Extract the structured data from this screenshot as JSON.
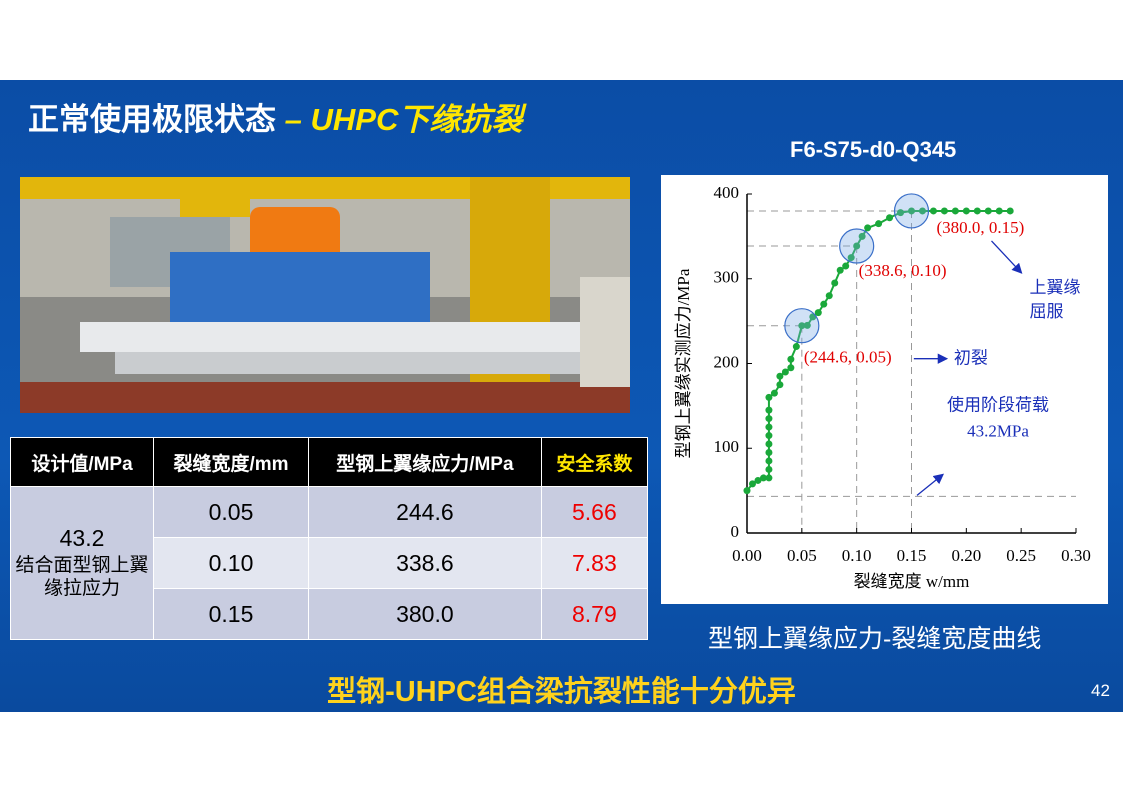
{
  "title": {
    "main": "正常使用极限状态",
    "dash": "–",
    "highlight": "UHPC下缘抗裂"
  },
  "table": {
    "header": [
      "设计值/MPa",
      "裂缝宽度/mm",
      "型钢上翼缘应力/MPa",
      "安全系数"
    ],
    "design_value": "43.2",
    "design_desc": "结合面型钢上翼缘拉应力",
    "rows": [
      [
        "0.05",
        "244.6",
        "5.66"
      ],
      [
        "0.10",
        "338.6",
        "7.83"
      ],
      [
        "0.15",
        "380.0",
        "8.79"
      ]
    ]
  },
  "chart_data": {
    "type": "line",
    "title": "F6-S75-d0-Q345",
    "caption": "型钢上翼缘应力-裂缝宽度曲线",
    "x_label": "裂缝宽度 w/mm",
    "y_label": "型钢上翼缘实测应力/MPa",
    "x": [
      0,
      0.005,
      0.01,
      0.015,
      0.02,
      0.02,
      0.02,
      0.02,
      0.02,
      0.02,
      0.02,
      0.02,
      0.02,
      0.02,
      0.025,
      0.03,
      0.03,
      0.035,
      0.04,
      0.04,
      0.045,
      0.05,
      0.055,
      0.06,
      0.065,
      0.07,
      0.075,
      0.08,
      0.085,
      0.09,
      0.095,
      0.1,
      0.105,
      0.11,
      0.12,
      0.13,
      0.14,
      0.15,
      0.16,
      0.17,
      0.18,
      0.19,
      0.2,
      0.21,
      0.22,
      0.23,
      0.24
    ],
    "series": [
      {
        "color": "#1aa83a",
        "values": [
          50,
          58,
          62,
          65,
          65,
          75,
          85,
          95,
          105,
          115,
          125,
          135,
          145,
          160,
          165,
          175,
          185,
          190,
          195,
          205,
          220,
          244.6,
          245,
          255,
          260,
          270,
          280,
          295,
          310,
          315,
          325,
          338.6,
          350,
          360,
          365,
          372,
          378,
          380,
          380,
          380,
          380,
          380,
          380,
          380,
          380,
          380,
          380
        ]
      }
    ],
    "xlim": [
      0,
      0.3
    ],
    "ylim": [
      0,
      400
    ],
    "xticks": [
      {
        "value": 0,
        "label": "0.00"
      },
      0.05,
      {
        "value": 0.1,
        "label": "0.10"
      },
      0.15,
      {
        "value": 0.2,
        "label": "0.20"
      },
      0.25,
      {
        "value": 0.3,
        "label": "0.30"
      }
    ],
    "yticks": [
      0,
      100,
      200,
      300,
      400
    ],
    "highlights": [
      {
        "x": 0.05,
        "y": 244.6,
        "label": "(244.6, 0.05)",
        "note": [
          "初裂"
        ]
      },
      {
        "x": 0.1,
        "y": 338.6,
        "label": "(338.6, 0.10)",
        "note": []
      },
      {
        "x": 0.15,
        "y": 380,
        "label": "(380.0, 0.15)",
        "note": [
          "上翼缘",
          "屈服"
        ]
      }
    ],
    "service_load": {
      "value": 43.2,
      "label": "使用阶段荷载",
      "value_label": "43.2MPa"
    }
  },
  "conclusion": "型钢-UHPC组合梁抗裂性能十分优异",
  "page_number": "42"
}
